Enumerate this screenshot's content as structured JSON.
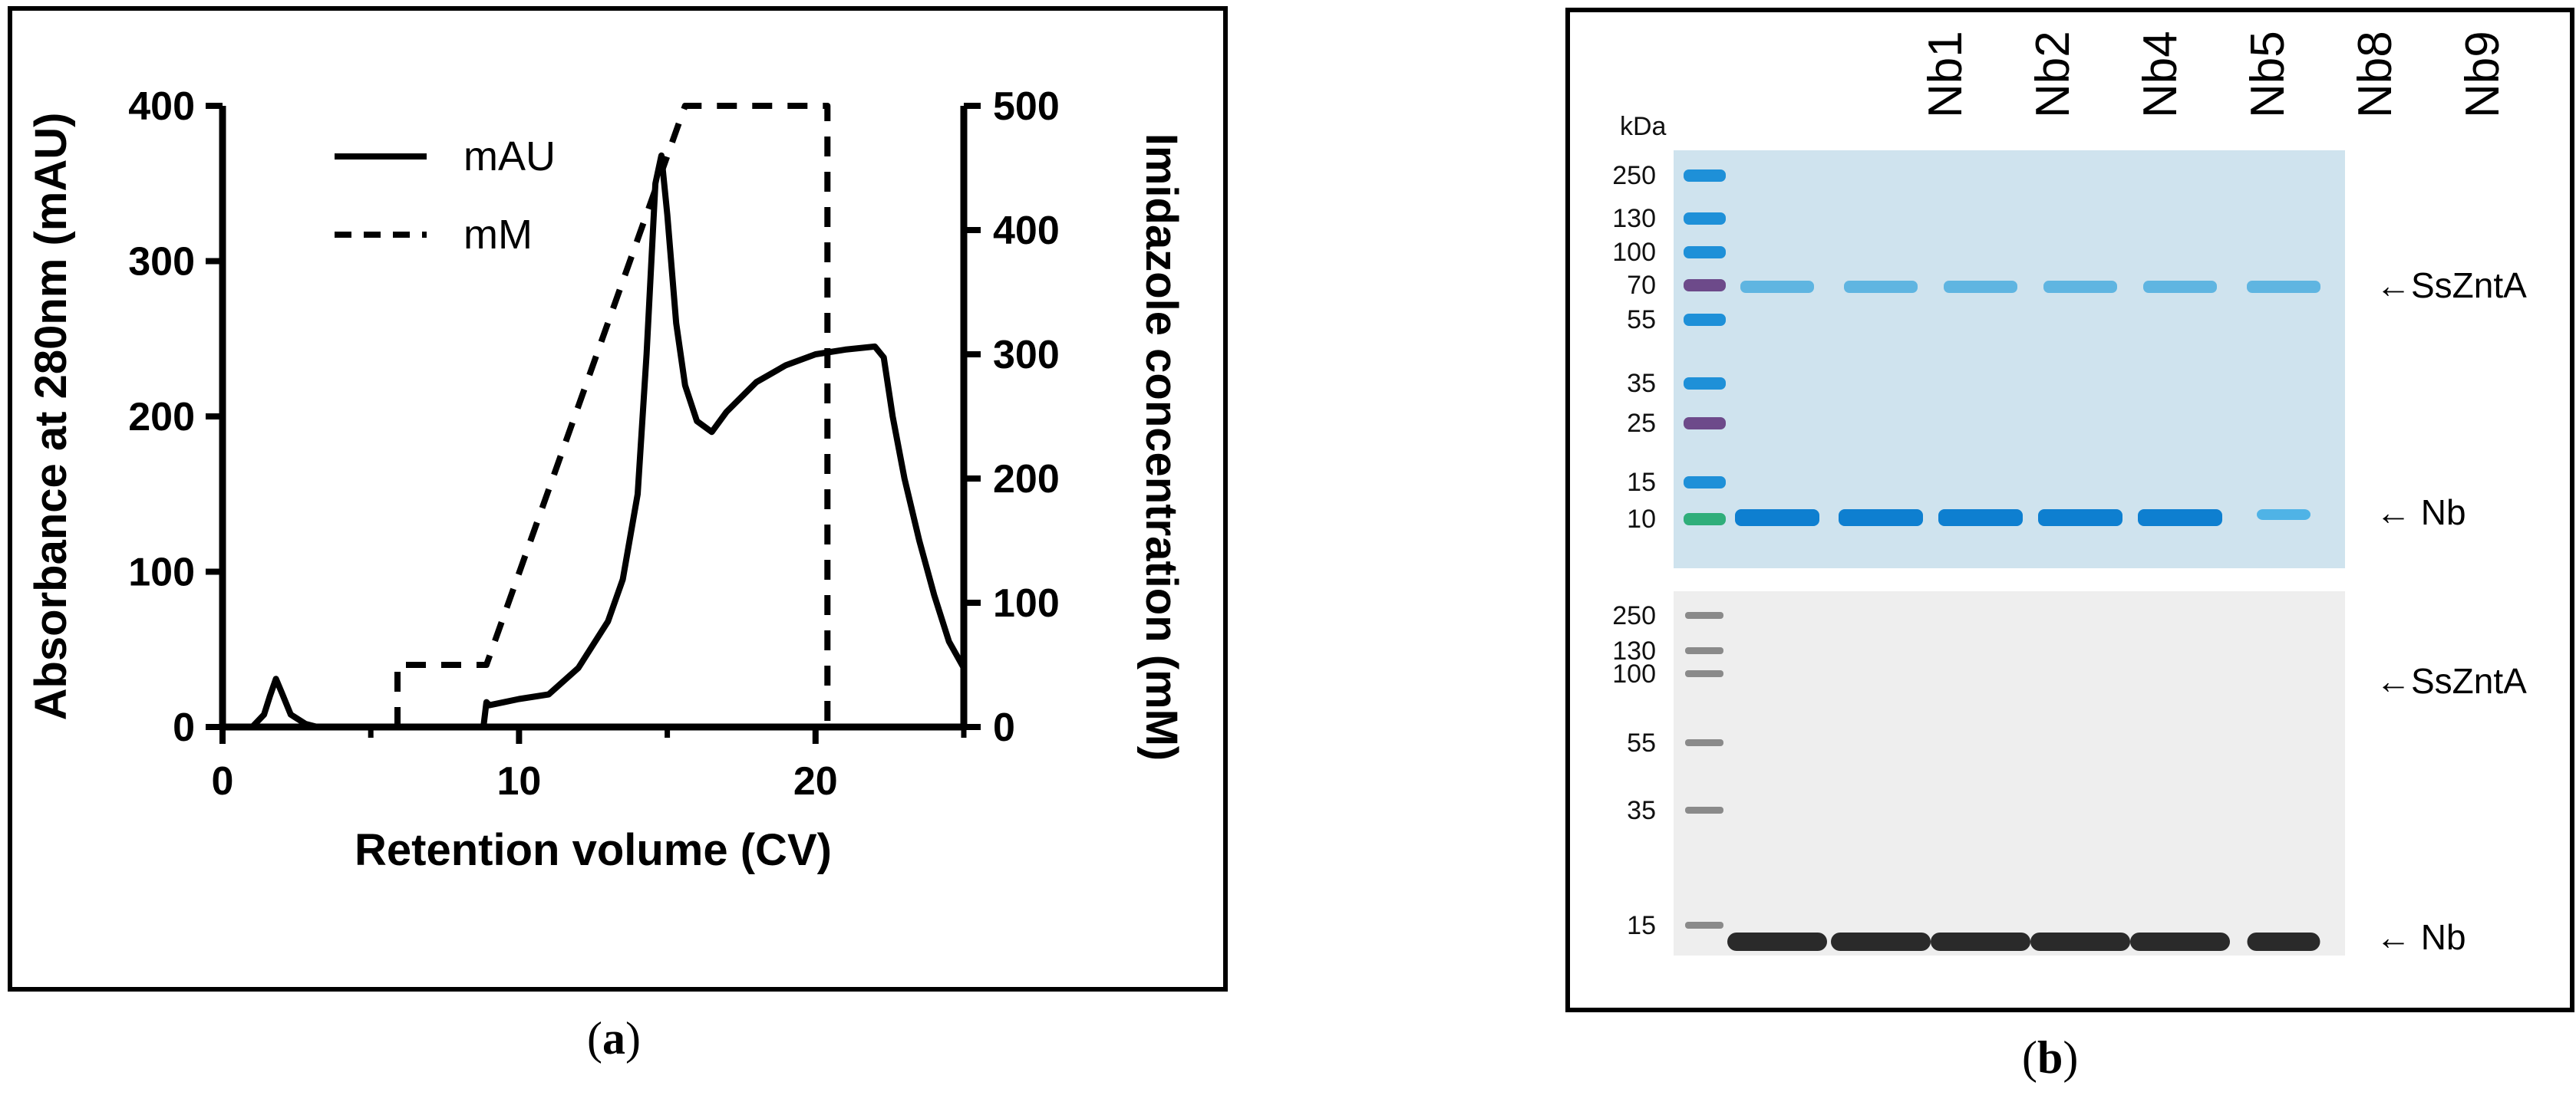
{
  "panel_a": {
    "caption_open": "(",
    "caption_letter": "a",
    "caption_close": ")"
  },
  "panel_b": {
    "caption_open": "(",
    "caption_letter": "b",
    "caption_close": ")",
    "lanes": [
      "Nb1",
      "Nb2",
      "Nb4",
      "Nb5",
      "Nb8",
      "Nb9"
    ],
    "kda_title": "kDa",
    "top_gel": {
      "markers": [
        "250",
        "130",
        "100",
        "70",
        "55",
        "35",
        "25",
        "15",
        "10"
      ],
      "ladder_colors": [
        "#1e90d8",
        "#1e90d8",
        "#1e90d8",
        "#6d4a8a",
        "#1e90d8",
        "#1e90d8",
        "#6d4a8a",
        "#1e90d8",
        "#2fae7a"
      ],
      "band_labels": [
        "SsZntA",
        "Nb"
      ],
      "arrow": "←",
      "background_color": "#cfe3ee",
      "band_color": "#0e7fd0"
    },
    "bottom_gel": {
      "markers": [
        "250",
        "130",
        "100",
        "55",
        "35",
        "15"
      ],
      "band_labels": [
        "SsZntA",
        "Nb"
      ],
      "arrow": "←",
      "background_color": "#eeeeee",
      "band_color": "#2a2a2a"
    }
  },
  "chart_data": {
    "type": "line",
    "title": "",
    "xlabel": "Retention volume (CV)",
    "ylabel": "Absorbance at 280nm (mAU)",
    "y2label": "Imidazole concentration (mM)",
    "xlim": [
      0,
      25
    ],
    "ylim": [
      0,
      400
    ],
    "y2lim": [
      0,
      500
    ],
    "xticks": [
      "0",
      "10",
      "20"
    ],
    "xtick_values": [
      0,
      10,
      20
    ],
    "yticks": [
      "0",
      "100",
      "200",
      "300",
      "400"
    ],
    "ytick_values": [
      0,
      100,
      200,
      300,
      400
    ],
    "y2ticks": [
      "0",
      "100",
      "200",
      "300",
      "400",
      "500"
    ],
    "y2tick_values": [
      0,
      100,
      200,
      300,
      400,
      500
    ],
    "legend_position": "top-left",
    "series": [
      {
        "name": "mAU",
        "axis": "left",
        "style": "solid",
        "x": [
          1.0,
          1.4,
          1.6,
          1.8,
          2.0,
          2.3,
          2.8,
          3.2,
          8.8,
          8.9,
          9.0,
          9.5,
          10.0,
          11.0,
          12.0,
          13.0,
          13.5,
          14.0,
          14.3,
          14.6,
          14.8,
          15.0,
          15.3,
          15.6,
          16.0,
          16.5,
          17.0,
          18.0,
          19.0,
          20.0,
          21.0,
          22.0,
          22.3,
          22.6,
          23.0,
          23.5,
          24.0,
          24.5,
          25.0
        ],
        "values": [
          0,
          8,
          20,
          31,
          22,
          8,
          2,
          0,
          0,
          16,
          14,
          16,
          18,
          21,
          38,
          68,
          95,
          150,
          240,
          350,
          368,
          330,
          260,
          220,
          197,
          190,
          203,
          222,
          233,
          240,
          243,
          245,
          238,
          200,
          160,
          120,
          85,
          55,
          38
        ]
      },
      {
        "name": "mM",
        "axis": "right",
        "style": "dashed",
        "x": [
          5.9,
          5.9,
          8.9,
          15.6,
          20.4,
          20.4
        ],
        "values": [
          0,
          50,
          50,
          500,
          500,
          0
        ]
      }
    ]
  }
}
